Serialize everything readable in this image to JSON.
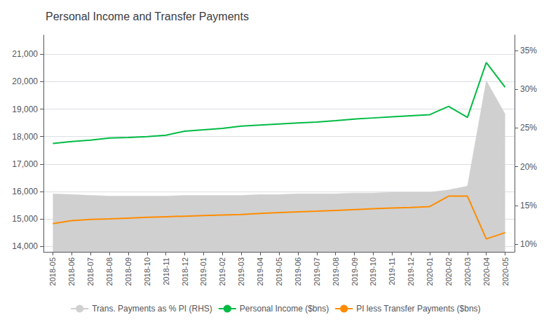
{
  "chart_data": {
    "type": "line",
    "title": "Personal Income and Transfer Payments",
    "categories": [
      "2018-05",
      "2018-06",
      "2018-07",
      "2018-08",
      "2018-09",
      "2018-10",
      "2018-11",
      "2018-12",
      "2019-01",
      "2019-02",
      "2019-03",
      "2019-04",
      "2019-05",
      "2019-06",
      "2019-07",
      "2019-08",
      "2019-09",
      "2019-10",
      "2019-11",
      "2019-12",
      "2020-01",
      "2020-02",
      "2020-03",
      "2020-04",
      "2020-05"
    ],
    "series": [
      {
        "name": "Trans. Payments as % PI (RHS)",
        "type": "area",
        "axis": "y2",
        "color": "#d0d0d0",
        "values": [
          16.5,
          16.4,
          16.3,
          16.2,
          16.2,
          16.2,
          16.2,
          16.3,
          16.3,
          16.3,
          16.3,
          16.4,
          16.4,
          16.5,
          16.5,
          16.5,
          16.6,
          16.6,
          16.7,
          16.7,
          16.7,
          17.0,
          17.5,
          31.1,
          26.8
        ]
      },
      {
        "name": "Personal Income ($bns)",
        "type": "line",
        "color": "#00bb44",
        "values": [
          17750,
          17820,
          17870,
          17950,
          17970,
          18000,
          18050,
          18200,
          18250,
          18300,
          18380,
          18420,
          18460,
          18500,
          18530,
          18580,
          18640,
          18680,
          18720,
          18760,
          18800,
          19100,
          18700,
          20700,
          19800
        ]
      },
      {
        "name": "PI less Transfer Payments ($bns)",
        "type": "line",
        "color": "#ff8c00",
        "values": [
          14830,
          14940,
          14980,
          15000,
          15030,
          15060,
          15080,
          15100,
          15120,
          15140,
          15160,
          15200,
          15230,
          15260,
          15280,
          15310,
          15340,
          15370,
          15400,
          15420,
          15450,
          15830,
          15830,
          14270,
          14500
        ]
      }
    ],
    "ylim": [
      13800,
      21700
    ],
    "yticks": [
      {
        "value": 14000,
        "label": "14,000"
      },
      {
        "value": 15000,
        "label": "15,000"
      },
      {
        "value": 16000,
        "label": "16,000"
      },
      {
        "value": 17000,
        "label": "17,000"
      },
      {
        "value": 18000,
        "label": "18,000"
      },
      {
        "value": 19000,
        "label": "19,000"
      },
      {
        "value": 20000,
        "label": "20,000"
      },
      {
        "value": 21000,
        "label": "21,000"
      }
    ],
    "y2lim": [
      9.0,
      37.0
    ],
    "y2ticks": [
      {
        "value": 10,
        "label": "10%"
      },
      {
        "value": 15,
        "label": "15%"
      },
      {
        "value": 20,
        "label": "20%"
      },
      {
        "value": 25,
        "label": "25%"
      },
      {
        "value": 30,
        "label": "30%"
      },
      {
        "value": 35,
        "label": "35%"
      }
    ],
    "grid": true,
    "legend": "bottom"
  }
}
